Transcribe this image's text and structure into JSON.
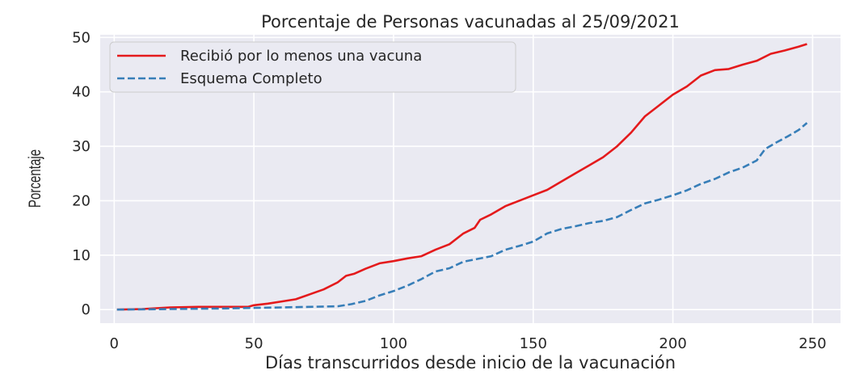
{
  "chart_data": {
    "type": "line",
    "title": "Porcentaje de Personas vacunadas al 25/09/2021",
    "xlabel": "Días transcurridos desde inicio de la vacunación",
    "ylabel": "Porcentaje",
    "xlim": [
      -5,
      260
    ],
    "ylim": [
      -2.5,
      50.5
    ],
    "xticks": [
      0,
      50,
      100,
      150,
      200,
      250
    ],
    "yticks": [
      0,
      10,
      20,
      30,
      40,
      50
    ],
    "grid": true,
    "legend_position": "top-left",
    "background": "#eaeaf2",
    "series": [
      {
        "name": "Recibió por lo menos una vacuna",
        "color": "#e41a1c",
        "dash": "solid",
        "points": [
          [
            1,
            0
          ],
          [
            10,
            0.1
          ],
          [
            20,
            0.4
          ],
          [
            30,
            0.5
          ],
          [
            40,
            0.5
          ],
          [
            48,
            0.5
          ],
          [
            50,
            0.8
          ],
          [
            55,
            1.1
          ],
          [
            60,
            1.5
          ],
          [
            65,
            1.9
          ],
          [
            70,
            2.8
          ],
          [
            75,
            3.7
          ],
          [
            80,
            5.0
          ],
          [
            83,
            6.2
          ],
          [
            86,
            6.6
          ],
          [
            90,
            7.5
          ],
          [
            95,
            8.5
          ],
          [
            100,
            8.9
          ],
          [
            105,
            9.4
          ],
          [
            110,
            9.8
          ],
          [
            115,
            11.0
          ],
          [
            120,
            12.0
          ],
          [
            125,
            14.0
          ],
          [
            129,
            15.0
          ],
          [
            131,
            16.5
          ],
          [
            135,
            17.5
          ],
          [
            140,
            19.0
          ],
          [
            145,
            20.0
          ],
          [
            150,
            21.0
          ],
          [
            155,
            22.0
          ],
          [
            160,
            23.5
          ],
          [
            165,
            25.0
          ],
          [
            170,
            26.5
          ],
          [
            175,
            28.0
          ],
          [
            180,
            30.0
          ],
          [
            185,
            32.5
          ],
          [
            190,
            35.5
          ],
          [
            195,
            37.5
          ],
          [
            200,
            39.5
          ],
          [
            205,
            41.0
          ],
          [
            210,
            43.0
          ],
          [
            215,
            44.0
          ],
          [
            220,
            44.2
          ],
          [
            225,
            45.0
          ],
          [
            230,
            45.7
          ],
          [
            235,
            47.0
          ],
          [
            240,
            47.6
          ],
          [
            245,
            48.3
          ],
          [
            248,
            48.8
          ]
        ]
      },
      {
        "name": "Esquema Completo",
        "color": "#377eb8",
        "dash": "dashed",
        "points": [
          [
            1,
            0
          ],
          [
            20,
            0.1
          ],
          [
            40,
            0.2
          ],
          [
            50,
            0.3
          ],
          [
            60,
            0.4
          ],
          [
            70,
            0.5
          ],
          [
            80,
            0.6
          ],
          [
            85,
            1.0
          ],
          [
            90,
            1.6
          ],
          [
            95,
            2.6
          ],
          [
            100,
            3.4
          ],
          [
            105,
            4.4
          ],
          [
            110,
            5.6
          ],
          [
            115,
            7.0
          ],
          [
            120,
            7.6
          ],
          [
            125,
            8.8
          ],
          [
            130,
            9.3
          ],
          [
            135,
            9.8
          ],
          [
            140,
            11.0
          ],
          [
            145,
            11.7
          ],
          [
            150,
            12.5
          ],
          [
            155,
            14.0
          ],
          [
            160,
            14.8
          ],
          [
            165,
            15.3
          ],
          [
            170,
            15.9
          ],
          [
            175,
            16.3
          ],
          [
            180,
            17.0
          ],
          [
            185,
            18.3
          ],
          [
            190,
            19.5
          ],
          [
            195,
            20.2
          ],
          [
            200,
            21.0
          ],
          [
            205,
            21.9
          ],
          [
            210,
            23.1
          ],
          [
            215,
            24.0
          ],
          [
            220,
            25.2
          ],
          [
            225,
            26.1
          ],
          [
            230,
            27.4
          ],
          [
            233,
            29.5
          ],
          [
            237,
            30.7
          ],
          [
            241,
            31.8
          ],
          [
            245,
            33.0
          ],
          [
            248,
            34.3
          ]
        ]
      }
    ]
  }
}
